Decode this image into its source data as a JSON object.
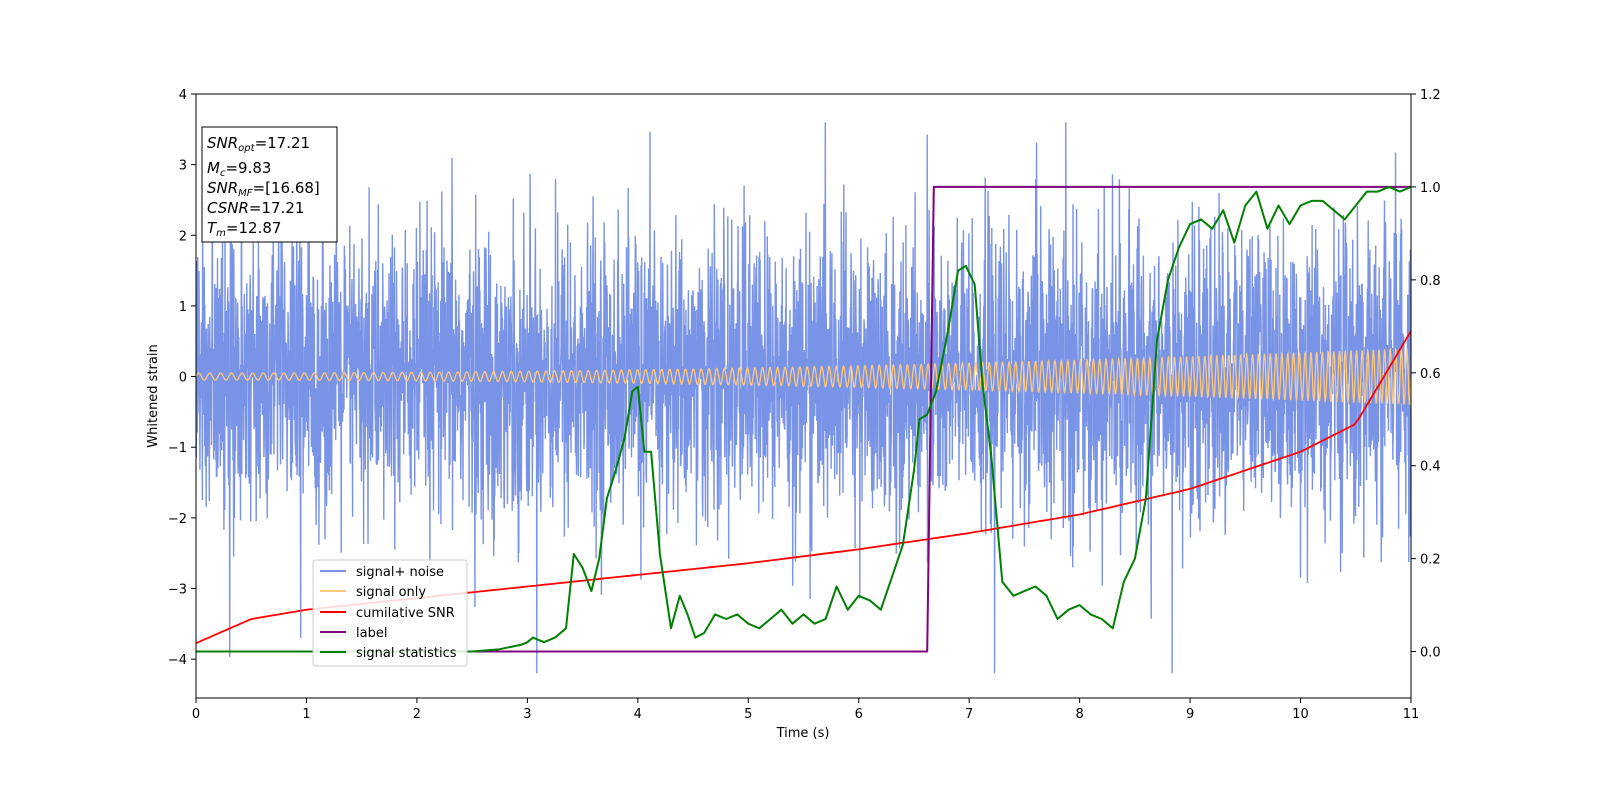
{
  "chart_data": {
    "type": "line",
    "xlabel": "Time (s)",
    "ylabel": "Whitened strain",
    "xlim": [
      0,
      11
    ],
    "ylim_left": [
      -4.55,
      4
    ],
    "ylim_right": [
      -0.1,
      1.2
    ],
    "x_ticks": [
      0,
      1,
      2,
      3,
      4,
      5,
      6,
      7,
      8,
      9,
      10,
      11
    ],
    "y_ticks_left": [
      -4,
      -3,
      -2,
      -1,
      0,
      1,
      2,
      3,
      4
    ],
    "y_ticks_right": [
      0.0,
      0.2,
      0.4,
      0.6,
      0.8,
      1.0,
      1.2
    ],
    "y_ticks_left_labels": [
      "−4",
      "−3",
      "−2",
      "−1",
      "0",
      "1",
      "2",
      "3",
      "4"
    ],
    "y_ticks_right_labels": [
      "0.0",
      "0.2",
      "0.4",
      "0.6",
      "0.8",
      "1.0",
      "1.2"
    ],
    "legend_position": "lower-left",
    "grid": false,
    "info_box": {
      "snr_opt": {
        "main": "SNR",
        "sub": "opt",
        "value": "=17.21"
      },
      "mc": {
        "main": "M",
        "sub": "c",
        "value": "=9.83"
      },
      "snr_mf": {
        "main": "SNR",
        "sub": "MF",
        "value": "=[16.68]"
      },
      "csnr": {
        "main": "CSNR",
        "value": "=17.21"
      },
      "tm": {
        "main": "T",
        "sub": "m",
        "value": "=12.87"
      }
    },
    "series": [
      {
        "name": "signal+ noise",
        "color": "#7993e6",
        "axis": "left",
        "description": "whitened noisy strain, approx. gaussian with std ~1 over 0–11 s"
      },
      {
        "name": "signal only",
        "color": "#ffc87a",
        "axis": "left",
        "amplitude_start": 0.05,
        "amplitude_end": 0.4,
        "frequency_start_hz": 10,
        "frequency_end_hz": 20
      },
      {
        "name": "cumilative SNR",
        "color": "#ff0000",
        "axis": "right",
        "x": [
          0,
          0.5,
          1,
          2,
          3,
          4,
          5,
          6,
          7,
          8,
          9,
          10,
          10.5,
          11
        ],
        "y": [
          0.018,
          0.07,
          0.09,
          0.115,
          0.14,
          0.165,
          0.19,
          0.22,
          0.255,
          0.295,
          0.35,
          0.43,
          0.49,
          0.69
        ]
      },
      {
        "name": "label",
        "color": "#800080",
        "axis": "right",
        "x": [
          0,
          6.62,
          6.68,
          11
        ],
        "y": [
          0,
          0,
          1,
          1
        ]
      },
      {
        "name": "signal statistics",
        "color": "#008000",
        "axis": "right",
        "x": [
          0,
          2.5,
          2.75,
          2.85,
          2.95,
          3.0,
          3.05,
          3.15,
          3.25,
          3.35,
          3.42,
          3.5,
          3.58,
          3.65,
          3.72,
          3.8,
          3.88,
          3.95,
          4.0,
          4.06,
          4.12,
          4.2,
          4.3,
          4.38,
          4.45,
          4.52,
          4.6,
          4.7,
          4.8,
          4.9,
          5.0,
          5.1,
          5.2,
          5.3,
          5.4,
          5.5,
          5.6,
          5.7,
          5.8,
          5.9,
          6.0,
          6.1,
          6.2,
          6.3,
          6.4,
          6.5,
          6.55,
          6.62,
          6.7,
          6.8,
          6.9,
          6.97,
          7.05,
          7.12,
          7.2,
          7.3,
          7.4,
          7.5,
          7.6,
          7.7,
          7.8,
          7.9,
          8.0,
          8.1,
          8.2,
          8.3,
          8.4,
          8.5,
          8.6,
          8.7,
          8.8,
          8.9,
          9.0,
          9.1,
          9.2,
          9.3,
          9.4,
          9.5,
          9.6,
          9.7,
          9.8,
          9.9,
          10.0,
          10.1,
          10.2,
          10.3,
          10.4,
          10.5,
          10.6,
          10.7,
          10.8,
          10.9,
          11.0
        ],
        "y": [
          0.0,
          0.0,
          0.005,
          0.01,
          0.015,
          0.02,
          0.03,
          0.02,
          0.03,
          0.05,
          0.21,
          0.18,
          0.13,
          0.2,
          0.33,
          0.39,
          0.46,
          0.56,
          0.57,
          0.43,
          0.43,
          0.21,
          0.05,
          0.12,
          0.08,
          0.03,
          0.04,
          0.08,
          0.07,
          0.08,
          0.06,
          0.05,
          0.07,
          0.09,
          0.06,
          0.08,
          0.06,
          0.07,
          0.14,
          0.09,
          0.12,
          0.11,
          0.09,
          0.16,
          0.23,
          0.39,
          0.5,
          0.51,
          0.56,
          0.68,
          0.82,
          0.83,
          0.79,
          0.58,
          0.42,
          0.15,
          0.12,
          0.13,
          0.14,
          0.12,
          0.07,
          0.09,
          0.1,
          0.08,
          0.07,
          0.05,
          0.15,
          0.2,
          0.33,
          0.67,
          0.8,
          0.87,
          0.92,
          0.93,
          0.91,
          0.95,
          0.88,
          0.96,
          0.99,
          0.91,
          0.96,
          0.92,
          0.96,
          0.97,
          0.97,
          0.95,
          0.93,
          0.96,
          0.99,
          0.99,
          1.0,
          0.99,
          1.0
        ]
      }
    ]
  }
}
